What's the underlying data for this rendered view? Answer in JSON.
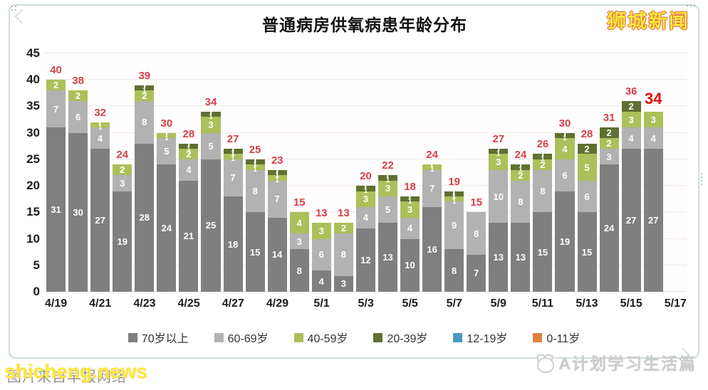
{
  "brand_top_right": "狮城新闻",
  "watermark_bottom_left": {
    "caption": "图片来自早报网络",
    "overlay": "shicheng.news"
  },
  "watermark_bottom_right": "A计划学习生活篇",
  "chart_data": {
    "type": "bar",
    "stacked": true,
    "title": "普通病房供氧病患年龄分布",
    "xlabel": "",
    "ylabel": "",
    "ylim": [
      0,
      45
    ],
    "yticks": [
      0,
      5,
      10,
      15,
      20,
      25,
      30,
      35,
      40,
      45
    ],
    "grid": "horizontal",
    "legend_position": "bottom",
    "categories": [
      "4/19",
      "4/20",
      "4/21",
      "4/22",
      "4/23",
      "4/24",
      "4/25",
      "4/26",
      "4/27",
      "4/28",
      "4/29",
      "4/30",
      "5/1",
      "5/2",
      "5/3",
      "5/4",
      "5/5",
      "5/6",
      "5/7",
      "5/8",
      "5/9",
      "5/10",
      "5/11",
      "5/12",
      "5/13",
      "5/14",
      "5/15",
      "5/16"
    ],
    "x_tick_labels": [
      "4/19",
      "4/21",
      "4/23",
      "4/25",
      "4/27",
      "4/29",
      "5/1",
      "5/3",
      "5/5",
      "5/7",
      "5/9",
      "5/11",
      "5/13",
      "5/15",
      "5/17"
    ],
    "series": [
      {
        "key": "70plus",
        "name": "70岁以上",
        "color": "#7f7f7f",
        "values": [
          31,
          30,
          27,
          19,
          28,
          24,
          21,
          25,
          18,
          15,
          14,
          8,
          4,
          3,
          12,
          13,
          10,
          16,
          8,
          7,
          13,
          13,
          15,
          19,
          15,
          24,
          27,
          27
        ]
      },
      {
        "key": "60to69",
        "name": "60-69岁",
        "color": "#b2b2b2",
        "values": [
          7,
          6,
          4,
          3,
          8,
          5,
          4,
          5,
          7,
          8,
          7,
          3,
          6,
          8,
          4,
          5,
          4,
          7,
          9,
          8,
          10,
          8,
          8,
          6,
          6,
          3,
          4,
          4
        ]
      },
      {
        "key": "40to59",
        "name": "40-59岁",
        "color": "#acc05a",
        "values": [
          2,
          2,
          1,
          2,
          2,
          1,
          2,
          3,
          1,
          1,
          1,
          4,
          3,
          2,
          3,
          3,
          3,
          1,
          1,
          0,
          3,
          2,
          2,
          4,
          5,
          2,
          3,
          3
        ]
      },
      {
        "key": "20to39",
        "name": "20-39岁",
        "color": "#5f7030",
        "values": [
          0,
          0,
          0,
          0,
          1,
          0,
          1,
          1,
          1,
          1,
          1,
          0,
          0,
          0,
          1,
          1,
          1,
          0,
          1,
          0,
          1,
          1,
          1,
          1,
          2,
          2,
          2,
          0
        ]
      },
      {
        "key": "12to19",
        "name": "12-19岁",
        "color": "#4a99c0",
        "values": [
          0,
          0,
          0,
          0,
          0,
          0,
          0,
          0,
          0,
          0,
          0,
          0,
          0,
          0,
          0,
          0,
          0,
          0,
          0,
          0,
          0,
          0,
          0,
          0,
          0,
          0,
          0,
          0
        ]
      },
      {
        "key": "0to11",
        "name": "0-11岁",
        "color": "#de8244",
        "values": [
          0,
          0,
          0,
          0,
          0,
          0,
          0,
          0,
          0,
          0,
          0,
          0,
          0,
          0,
          0,
          0,
          0,
          0,
          0,
          0,
          0,
          0,
          0,
          0,
          0,
          0,
          0,
          0
        ]
      }
    ],
    "totals": [
      40,
      38,
      32,
      24,
      39,
      30,
      28,
      34,
      27,
      25,
      23,
      15,
      13,
      13,
      20,
      22,
      18,
      24,
      19,
      15,
      27,
      24,
      26,
      30,
      28,
      31,
      36,
      34
    ],
    "emphasized_total_index": 27,
    "colors": {
      "total_label": "#d5404a",
      "total_label_emphasized": "#e60d0d",
      "gridline": "#f3e6e6"
    }
  }
}
